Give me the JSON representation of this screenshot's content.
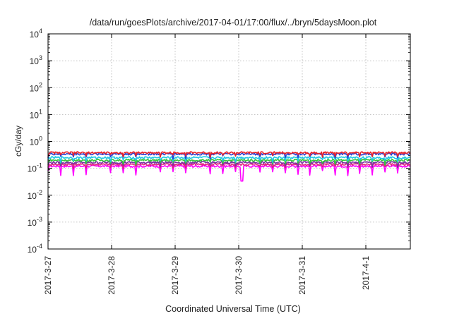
{
  "chart_data": {
    "type": "line",
    "title": "/data/run/goesPlots/archive/2017-04-01/17:00/flux/../bryn/5daysMoon.plot",
    "xlabel": "Coordinated Universal Time (UTC)",
    "ylabel": "cGy/day",
    "y_scale": "log",
    "ylim_exp": [
      -4,
      4
    ],
    "y_ticks": [
      {
        "base": "10",
        "exp": "4"
      },
      {
        "base": "10",
        "exp": "3"
      },
      {
        "base": "10",
        "exp": "2"
      },
      {
        "base": "10",
        "exp": "1"
      },
      {
        "base": "10",
        "exp": "0"
      },
      {
        "base": "10",
        "exp": "-1"
      },
      {
        "base": "10",
        "exp": "-2"
      },
      {
        "base": "10",
        "exp": "-3"
      },
      {
        "base": "10",
        "exp": "-4"
      }
    ],
    "x_range_days": [
      0,
      5.7
    ],
    "x_ticks": [
      {
        "label": "2017-3-27",
        "day": 0
      },
      {
        "label": "2017-3-28",
        "day": 1
      },
      {
        "label": "2017-3-29",
        "day": 2
      },
      {
        "label": "2017-3-30",
        "day": 3
      },
      {
        "label": "2017-3-31",
        "day": 4
      },
      {
        "label": "2017-4-1",
        "day": 5
      }
    ],
    "grid": true,
    "legend": "none",
    "series": [
      {
        "color": "#e8222a",
        "typical_value": 0.38
      },
      {
        "color": "#2b3fd1",
        "typical_value": 0.34
      },
      {
        "color": "#1fc6e6",
        "typical_value": 0.25
      },
      {
        "color": "#37c83a",
        "typical_value": 0.2
      },
      {
        "color": "#7b2fa3",
        "typical_value": 0.165
      },
      {
        "color": "#e0267c",
        "typical_value": 0.14
      },
      {
        "color": "#ff00ff",
        "typical_value": 0.12
      }
    ]
  }
}
